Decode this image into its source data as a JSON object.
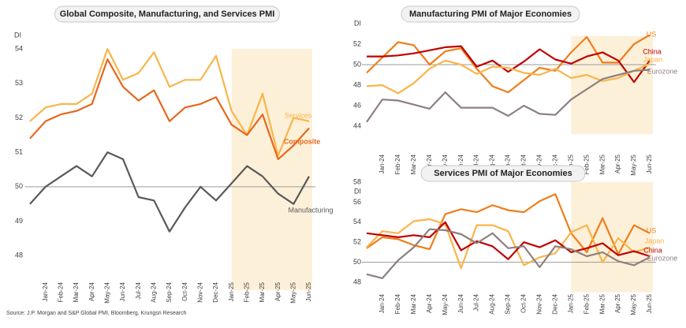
{
  "chart_data": [
    {
      "type": "line",
      "title": "Global Composite, Manufacturing, and Services PMI",
      "ylabel": "DI",
      "categories": [
        null,
        "Jan-24",
        "Feb-24",
        "Mar-24",
        "Apr-24",
        "May-24",
        "Jun-24",
        "Jul-24",
        "Aug-24",
        "Sep-24",
        "Oct-24",
        "Nov-24",
        "Dec-24",
        "Jan-25",
        "Feb-25",
        "Mar-25",
        "Apr-25",
        "May-25",
        "Jun-25"
      ],
      "series": [
        {
          "name": "Services",
          "color": "#f9b54a",
          "values": [
            51.9,
            52.3,
            52.4,
            52.4,
            52.7,
            54.0,
            53.1,
            53.3,
            53.9,
            52.9,
            53.1,
            53.1,
            53.8,
            52.2,
            51.5,
            52.7,
            50.9,
            52.0,
            51.9
          ]
        },
        {
          "name": "Composite",
          "color": "#e8671b",
          "values": [
            51.4,
            51.9,
            52.1,
            52.2,
            52.4,
            53.7,
            52.9,
            52.5,
            52.8,
            51.9,
            52.3,
            52.4,
            52.6,
            51.8,
            51.5,
            52.1,
            50.8,
            51.2,
            51.7
          ]
        },
        {
          "name": "Manufacturing",
          "color": "#595959",
          "values": [
            49.5,
            50.0,
            50.3,
            50.6,
            50.3,
            51.0,
            50.8,
            49.7,
            49.6,
            48.7,
            49.4,
            50.0,
            49.6,
            50.1,
            50.6,
            50.3,
            49.8,
            49.5,
            50.3
          ]
        }
      ],
      "ylim": [
        47,
        54
      ],
      "yticks": [
        48,
        49,
        50,
        51,
        52,
        53,
        54
      ],
      "hline": 50,
      "highlight_from": "Jan-25",
      "highlight_color": "#fdf0d9"
    },
    {
      "type": "line",
      "title": "Manufacturing PMI of Major Economies",
      "ylabel": "DI",
      "categories": [
        null,
        "Jan-24",
        "Feb-24",
        "Mar-24",
        "Apr-24",
        "May-24",
        "Jun-24",
        "Jul-24",
        "Aug-24",
        "Sep-24",
        "Oct-24",
        "Nov-24",
        "Dec-24",
        "Jan-25",
        "Feb-25",
        "Mar-25",
        "Apr-25",
        "May-25",
        "Jun-25"
      ],
      "series": [
        {
          "name": "US",
          "color": "#f07d1a",
          "values": [
            49.2,
            50.7,
            52.2,
            51.9,
            50.0,
            51.3,
            51.6,
            49.6,
            47.9,
            47.3,
            48.5,
            49.7,
            49.4,
            51.2,
            52.7,
            50.2,
            50.2,
            52.0,
            52.9
          ]
        },
        {
          "name": "China",
          "color": "#c00000",
          "values": [
            50.8,
            50.8,
            50.9,
            51.1,
            51.4,
            51.7,
            51.8,
            49.8,
            50.4,
            49.3,
            50.3,
            51.5,
            50.5,
            50.1,
            50.8,
            51.2,
            50.4,
            48.3,
            50.4
          ]
        },
        {
          "name": "Japan",
          "color": "#f9b54a",
          "values": [
            47.9,
            48.0,
            47.2,
            48.2,
            49.6,
            50.4,
            50.0,
            49.1,
            49.8,
            49.7,
            49.2,
            49.0,
            49.6,
            48.7,
            49.0,
            48.4,
            48.7,
            49.4,
            50.1
          ]
        },
        {
          "name": "Eurozone",
          "color": "#8e8080",
          "values": [
            44.4,
            46.6,
            46.5,
            46.1,
            45.7,
            47.3,
            45.8,
            45.8,
            45.8,
            45.0,
            46.0,
            45.2,
            45.1,
            46.6,
            47.6,
            48.6,
            49.0,
            49.4,
            49.5
          ]
        }
      ],
      "ylim": [
        43.2,
        52.8
      ],
      "yticks": [
        44,
        46,
        48,
        50,
        52
      ],
      "hline": 50,
      "highlight_from": "Jan-25",
      "highlight_color": "#fdf0d9"
    },
    {
      "type": "line",
      "title": "Services PMI of Major Economies",
      "ylabel": "DI",
      "categories": [
        null,
        "Jan-24",
        "Feb-24",
        "Mar-24",
        "Apr-24",
        "May-24",
        "Jun-24",
        "Jul-24",
        "Aug-24",
        "Sep-24",
        "Oct-24",
        "Nov-24",
        "Dec-24",
        "Jan-25",
        "Feb-25",
        "Mar-25",
        "Apr-25",
        "May-25",
        "Jun-25"
      ],
      "series": [
        {
          "name": "US",
          "color": "#f07d1a",
          "values": [
            51.4,
            52.5,
            52.3,
            51.7,
            51.3,
            54.8,
            55.3,
            55.0,
            55.7,
            55.2,
            55.0,
            56.1,
            56.8,
            52.9,
            51.0,
            54.4,
            50.8,
            53.7,
            52.9
          ]
        },
        {
          "name": "Japan",
          "color": "#f9b54a",
          "values": [
            51.5,
            53.1,
            52.9,
            54.1,
            54.3,
            53.8,
            49.4,
            53.7,
            53.7,
            53.1,
            49.7,
            50.5,
            50.9,
            53.0,
            53.7,
            50.0,
            52.4,
            51.0,
            51.5
          ]
        },
        {
          "name": "China",
          "color": "#c00000",
          "values": [
            52.9,
            52.7,
            52.5,
            52.7,
            52.5,
            54.0,
            51.2,
            52.1,
            51.6,
            50.3,
            52.0,
            51.5,
            52.2,
            51.0,
            51.4,
            51.9,
            50.7,
            51.1,
            50.6
          ]
        },
        {
          "name": "Eurozone",
          "color": "#8e8080",
          "values": [
            48.8,
            48.4,
            50.2,
            51.5,
            53.3,
            53.2,
            52.8,
            51.9,
            52.9,
            51.4,
            51.6,
            49.5,
            51.6,
            51.3,
            50.6,
            51.0,
            50.1,
            49.7,
            50.5
          ]
        }
      ],
      "ylim": [
        47,
        58
      ],
      "yticks": [
        48,
        50,
        52,
        54,
        56,
        58
      ],
      "hline": 50,
      "highlight_from": "Jan-25",
      "highlight_color": "#fdf0d9"
    }
  ],
  "source": "Source: J.P. Morgan and S&P Global PMI, Bloomberg, Krungsri Research"
}
